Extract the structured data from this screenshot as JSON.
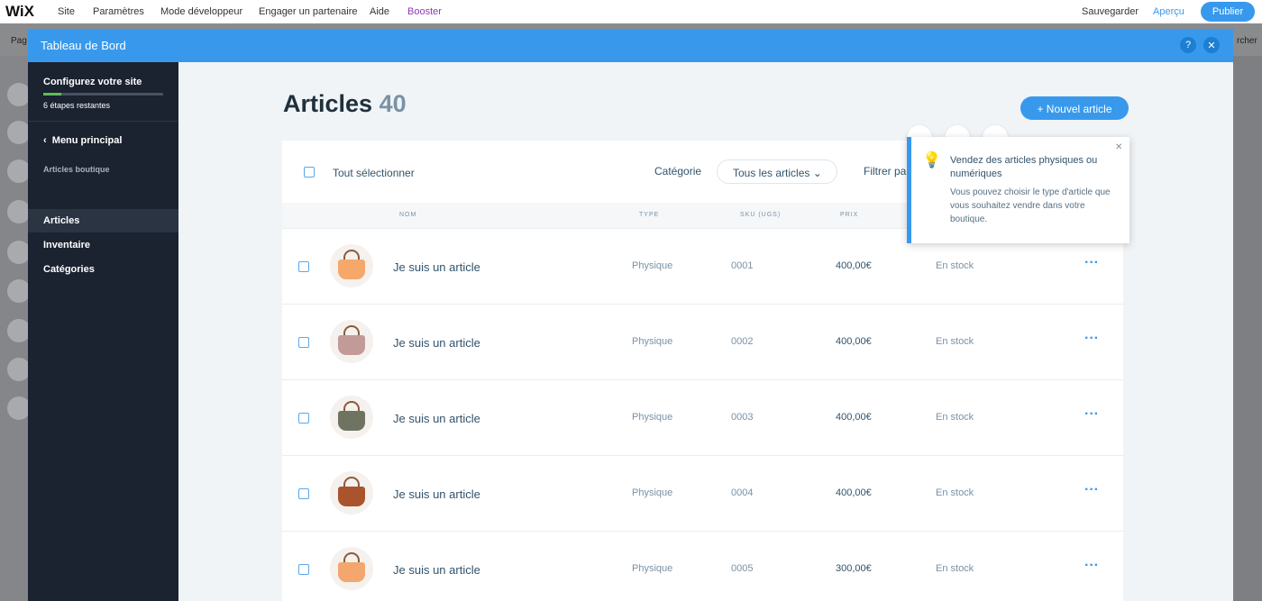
{
  "topbar": {
    "logo": "WiX",
    "menu": [
      "Site",
      "Paramètres",
      "Mode développeur",
      "Engager un partenaire",
      "Aide",
      "Booster"
    ],
    "save": "Sauvegarder",
    "preview": "Aperçu",
    "publish": "Publier"
  },
  "editor": {
    "left_text": "Pag",
    "right_text": "rcher"
  },
  "modal": {
    "title": "Tableau de Bord"
  },
  "sidebar": {
    "setup_title": "Configurez votre site",
    "setup_steps": "6 étapes restantes",
    "back": "Menu principal",
    "section": "Articles boutique",
    "items": [
      "Articles",
      "Inventaire",
      "Catégories"
    ]
  },
  "header": {
    "title": "Articles",
    "count": "40",
    "new_button": "+ Nouvel article"
  },
  "toolbar": {
    "select_all": "Tout sélectionner",
    "category_label": "Catégorie",
    "category_value": "Tous les articles",
    "filter": "Filtrer pa"
  },
  "table": {
    "columns": [
      "NOM",
      "TYPE",
      "SKU (UGS)",
      "PRIX"
    ],
    "rows": [
      [
        "Je suis un article",
        "Physique",
        "0001",
        "400,00€",
        "En stock"
      ],
      [
        "Je suis un article",
        "Physique",
        "0002",
        "400,00€",
        "En stock"
      ],
      [
        "Je suis un article",
        "Physique",
        "0003",
        "400,00€",
        "En stock"
      ],
      [
        "Je suis un article",
        "Physique",
        "0004",
        "400,00€",
        "En stock"
      ],
      [
        "Je suis un article",
        "Physique",
        "0005",
        "300,00€",
        "En stock"
      ]
    ]
  },
  "tooltip": {
    "title": "Vendez des articles physiques ou numériques",
    "body": "Vous pouvez choisir le type d'article que vous souhaitez vendre dans votre boutique."
  }
}
